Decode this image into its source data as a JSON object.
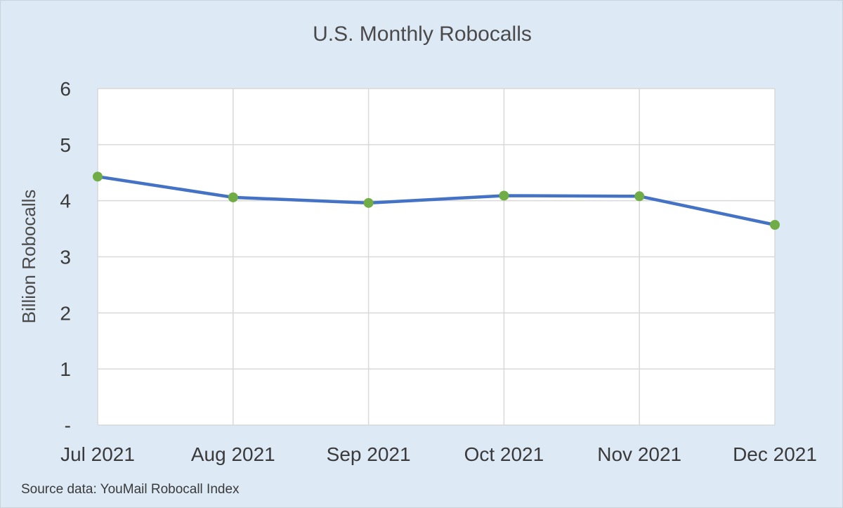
{
  "chart_data": {
    "type": "line",
    "title": "U.S. Monthly Robocalls",
    "xlabel": "",
    "ylabel": "Billion Robocalls",
    "categories": [
      "Jul 2021",
      "Aug 2021",
      "Sep 2021",
      "Oct 2021",
      "Nov 2021",
      "Dec 2021"
    ],
    "series": [
      {
        "values": [
          4.43,
          4.06,
          3.96,
          4.09,
          4.08,
          3.57
        ]
      }
    ],
    "ylim": [
      0,
      6
    ],
    "yticks": [
      0,
      1,
      2,
      3,
      4,
      5,
      6
    ],
    "ytick_labels": [
      "-",
      "1",
      "2",
      "3",
      "4",
      "5",
      "6"
    ],
    "grid": true,
    "legend": "none",
    "colors": {
      "background": "#dde9f5",
      "plot_area": "#ffffff",
      "gridline": "#d9d9d9",
      "line": "#4472c4",
      "marker": "#70ad47"
    }
  },
  "footer": {
    "source_note": "Source data: YouMail Robocall Index"
  }
}
